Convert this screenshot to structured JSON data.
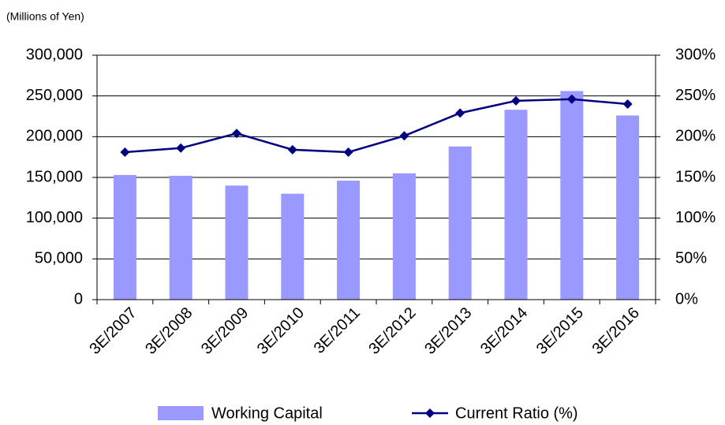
{
  "chart_data": {
    "type": "bar_line",
    "y_axis_label": "(Millions of  Yen)",
    "categories": [
      "3E/2007",
      "3E/2008",
      "3E/2009",
      "3E/2010",
      "3E/2011",
      "3E/2012",
      "3E/2013",
      "3E/2014",
      "3E/2015",
      "3E/2016"
    ],
    "series": [
      {
        "name": "Working Capital",
        "type": "bar",
        "color": "#9999ff",
        "values": [
          153000,
          152000,
          140000,
          130000,
          146000,
          155000,
          188000,
          233000,
          256000,
          226000
        ]
      },
      {
        "name": "Current Ratio (%)",
        "type": "line",
        "axis": "y2",
        "color": "#000080",
        "values": [
          181,
          186,
          204,
          184,
          181,
          201,
          229,
          244,
          246,
          240
        ]
      }
    ],
    "ylim": [
      0,
      300000
    ],
    "yticks": [
      0,
      {
        "value": 50000,
        "label": "50,000"
      },
      {
        "value": 100000,
        "label": "100,000"
      },
      {
        "value": 150000,
        "label": "150,000"
      },
      {
        "value": 200000,
        "label": "200,000"
      },
      {
        "value": 250000,
        "label": "250,000"
      },
      {
        "value": 300000,
        "label": "300,000"
      }
    ],
    "y2lim": [
      0,
      300
    ],
    "y2ticks": [
      {
        "value": 0,
        "label": "0%"
      },
      {
        "value": 50,
        "label": "50%"
      },
      {
        "value": 100,
        "label": "100%"
      },
      {
        "value": 150,
        "label": "150%"
      },
      {
        "value": 200,
        "label": "200%"
      },
      {
        "value": 250,
        "label": "250%"
      },
      {
        "value": 300,
        "label": "300%"
      }
    ],
    "grid": true,
    "legend": "bottom"
  }
}
